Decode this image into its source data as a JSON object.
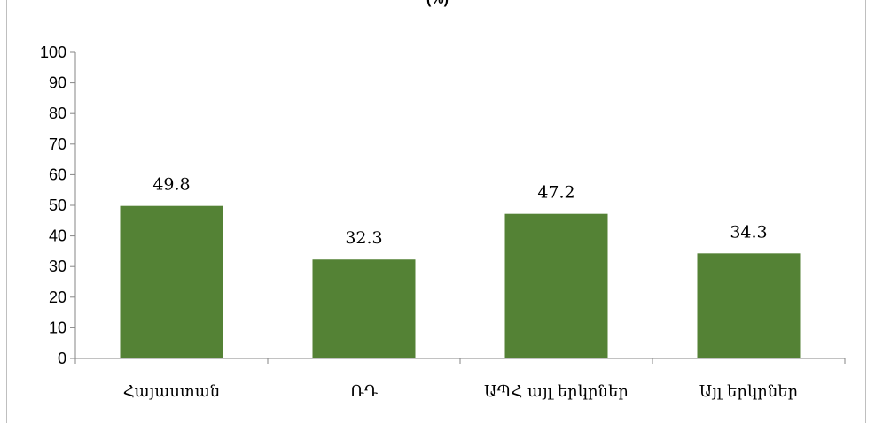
{
  "chart_data": {
    "type": "bar",
    "title": "(%)",
    "categories": [
      "Հայաստան",
      "ՌԴ",
      "ԱՊՀ այլ երկրներ",
      "Այլ երկրներ"
    ],
    "values": [
      49.8,
      32.3,
      47.2,
      34.3
    ],
    "data_labels": [
      "49.8",
      "32.3",
      "47.2",
      "34.3"
    ],
    "ylim": [
      0,
      100
    ],
    "yticks": [
      0,
      10,
      20,
      30,
      40,
      50,
      60,
      70,
      80,
      90,
      100
    ],
    "xlabel": "",
    "ylabel": "",
    "grid": false,
    "legend": "none",
    "bar_color": "#548235"
  }
}
